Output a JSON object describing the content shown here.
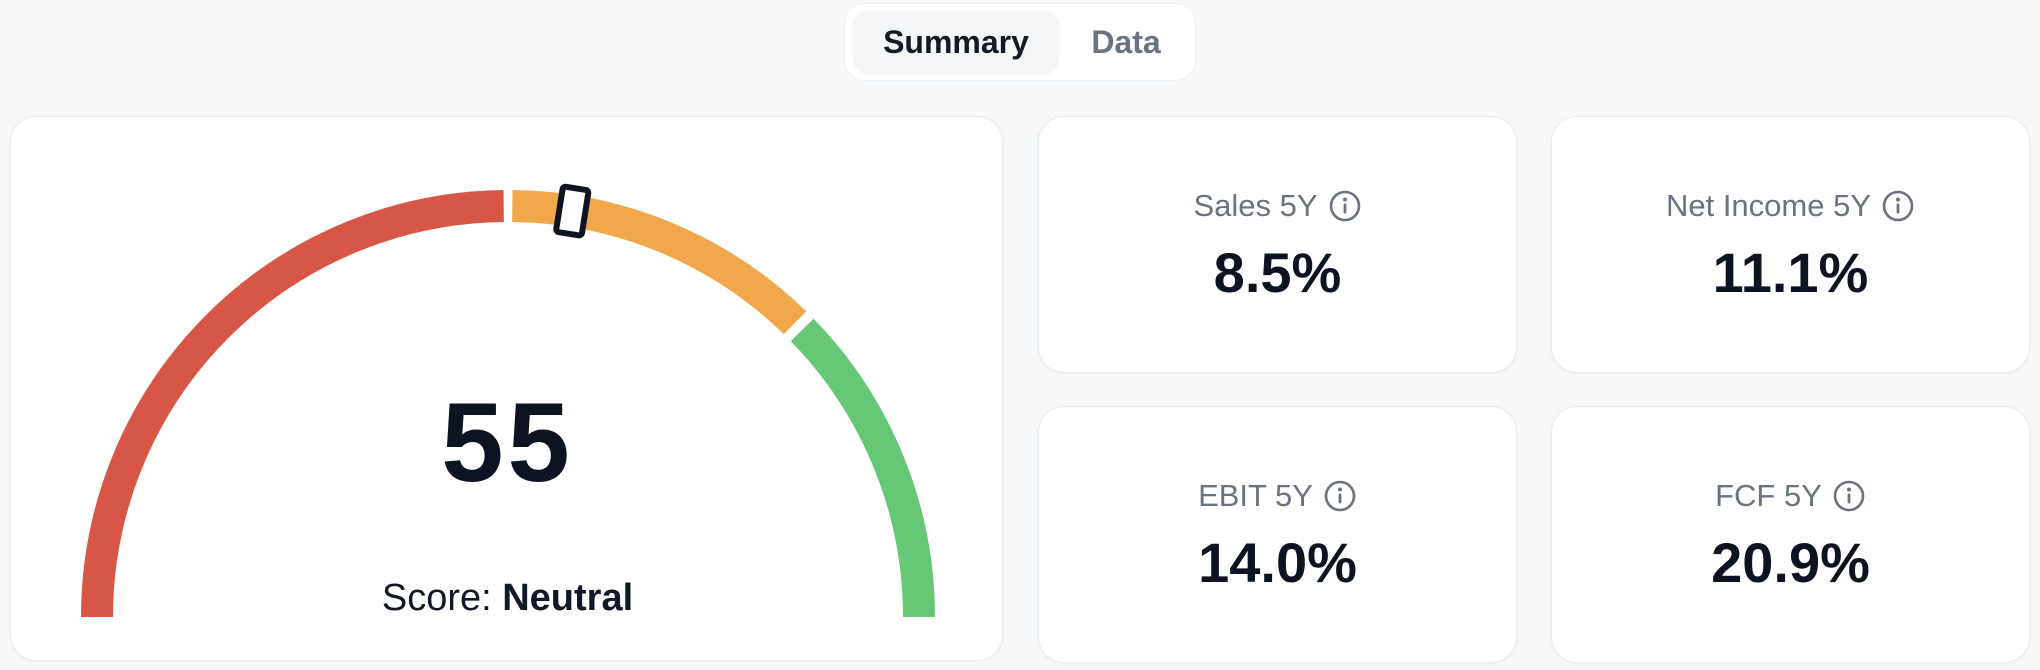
{
  "tabs": [
    {
      "label": "Summary",
      "active": true
    },
    {
      "label": "Data",
      "active": false
    }
  ],
  "gauge": {
    "score": "55",
    "score_prefix": "Score:",
    "score_label": "Neutral",
    "value": 55,
    "colors": {
      "low": "#d85646",
      "mid": "#f1a84a",
      "high": "#66c775"
    }
  },
  "metrics": [
    {
      "label": "Sales 5Y",
      "value": "8.5%",
      "icon": "info-icon"
    },
    {
      "label": "Net Income 5Y",
      "value": "11.1%",
      "icon": "info-icon"
    },
    {
      "label": "EBIT 5Y",
      "value": "14.0%",
      "icon": "info-icon"
    },
    {
      "label": "FCF 5Y",
      "value": "20.9%",
      "icon": "info-icon"
    }
  ]
}
